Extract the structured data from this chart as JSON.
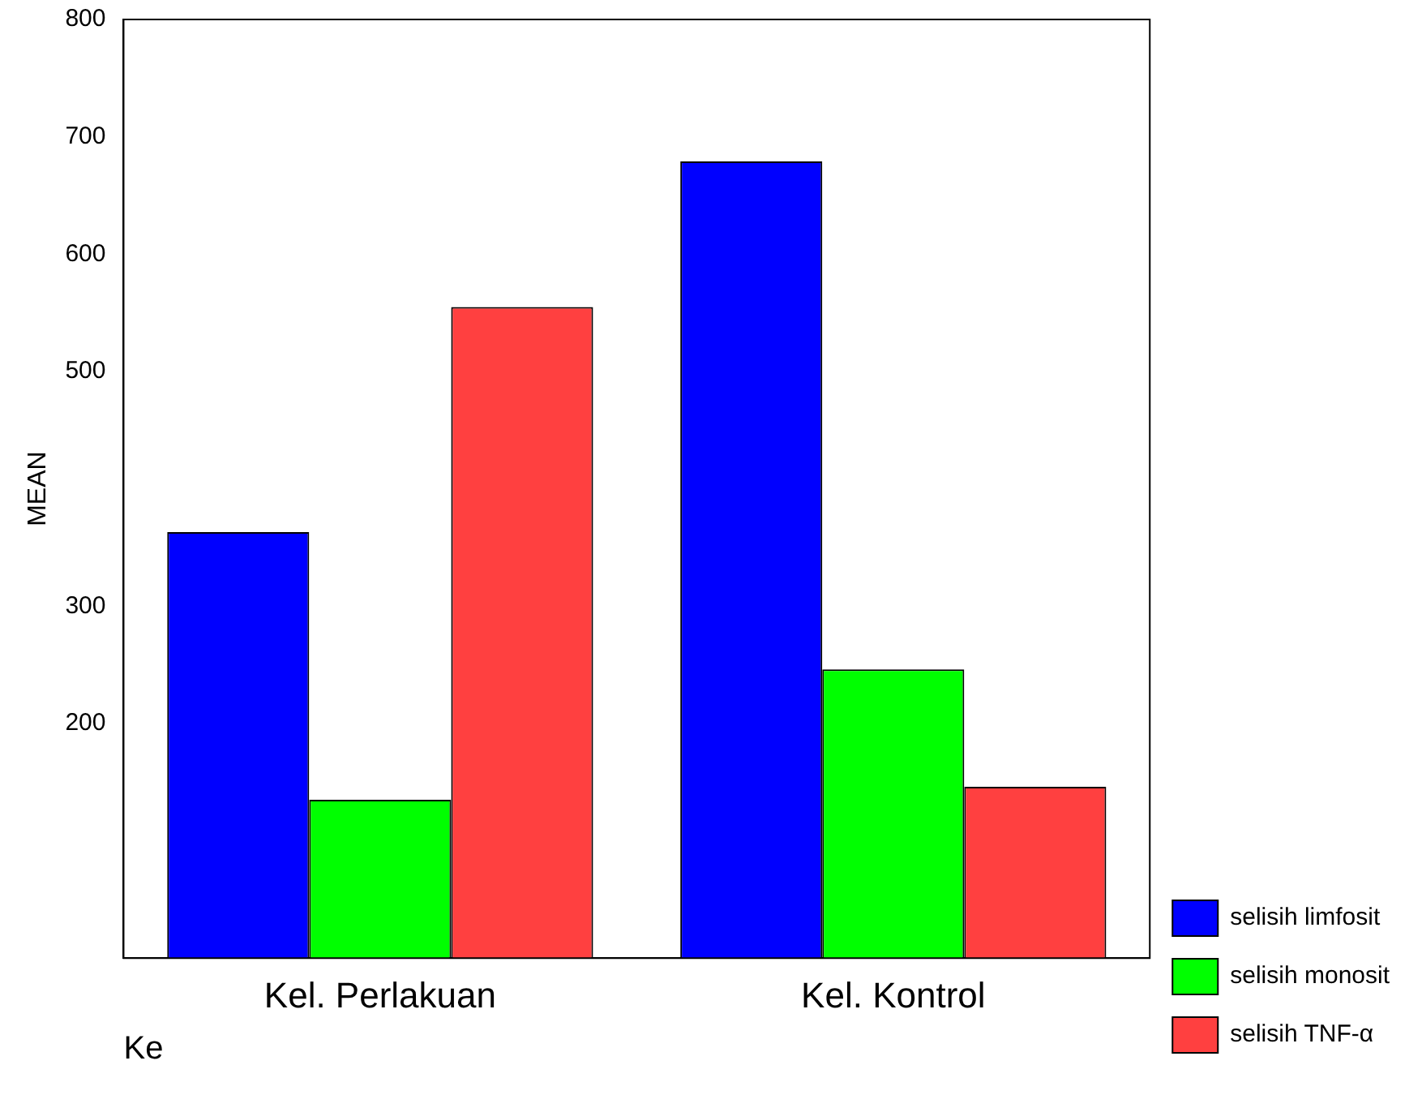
{
  "chart_data": {
    "type": "bar",
    "xlabel": "Ke",
    "ylabel": "MEAN",
    "categories": [
      "Kel. Perlakuan",
      "Kel. Kontrol"
    ],
    "series": [
      {
        "name": "selisih limfosit",
        "color": "#0000ff",
        "values": [
          363,
          679
        ]
      },
      {
        "name": "selisih monosit",
        "color": "#00ff00",
        "values": [
          135,
          246
        ]
      },
      {
        "name": "selisih TNF-α",
        "color": "#ff4040",
        "values": [
          555,
          146
        ]
      }
    ],
    "ylim": [
      0,
      800
    ],
    "yticks": [
      200,
      300,
      500,
      600,
      700,
      800
    ],
    "grid": false,
    "legend": "right"
  }
}
